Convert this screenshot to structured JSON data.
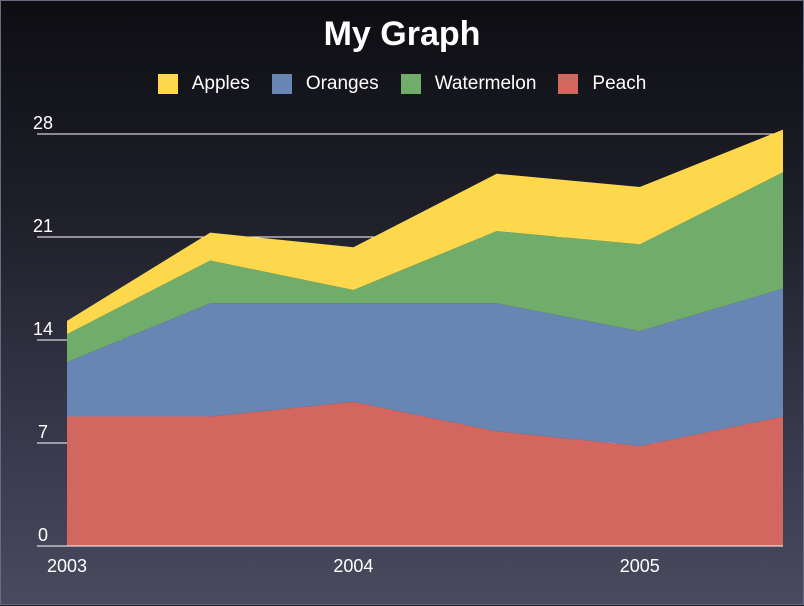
{
  "chart_data": {
    "type": "area",
    "stacked": true,
    "title": "My Graph",
    "x": [
      2003,
      2003.5,
      2004,
      2004.5,
      2005,
      2005.5
    ],
    "x_ticks": [
      "2003",
      "2004",
      "2005"
    ],
    "y_ticks": [
      "0",
      "7",
      "14",
      "21",
      "28"
    ],
    "ylim": [
      0,
      28
    ],
    "legend_position": "top",
    "grid": "horizontal",
    "series": [
      {
        "name": "Peach",
        "color": "#d3665e",
        "values": [
          8.8,
          8.8,
          9.8,
          7.8,
          6.8,
          8.8
        ]
      },
      {
        "name": "Oranges",
        "color": "#6786b4",
        "values": [
          3.7,
          7.7,
          6.7,
          8.7,
          7.8,
          8.7
        ]
      },
      {
        "name": "Watermelon",
        "color": "#70ad6a",
        "values": [
          1.9,
          2.9,
          0.9,
          4.9,
          5.9,
          7.9
        ]
      },
      {
        "name": "Apples",
        "color": "#fdd84d",
        "values": [
          0.9,
          1.9,
          2.9,
          3.9,
          3.9,
          2.9
        ]
      }
    ],
    "legend_order": [
      "Apples",
      "Oranges",
      "Watermelon",
      "Peach"
    ]
  }
}
